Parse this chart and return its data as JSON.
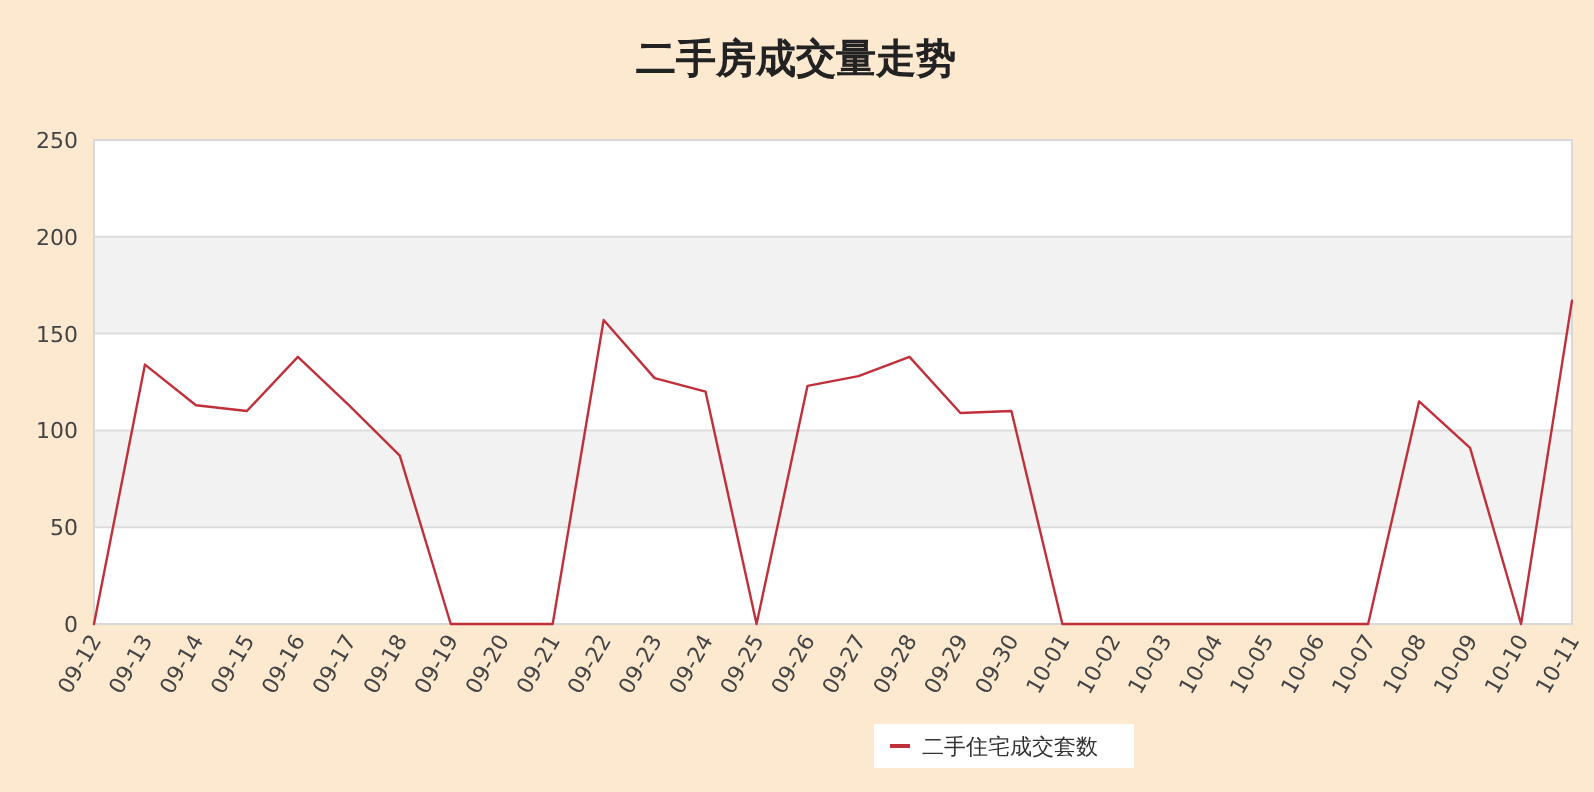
{
  "chart_data": {
    "type": "line",
    "title": "二手房成交量走势",
    "categories": [
      "09-12",
      "09-13",
      "09-14",
      "09-15",
      "09-16",
      "09-17",
      "09-18",
      "09-19",
      "09-20",
      "09-21",
      "09-22",
      "09-23",
      "09-24",
      "09-25",
      "09-26",
      "09-27",
      "09-28",
      "09-29",
      "09-30",
      "10-01",
      "10-02",
      "10-03",
      "10-04",
      "10-05",
      "10-06",
      "10-07",
      "10-08",
      "10-09",
      "10-10",
      "10-11"
    ],
    "series": [
      {
        "name": "二手住宅成交套数",
        "color": "#c0303a",
        "values": [
          0,
          134,
          113,
          110,
          138,
          113,
          87,
          0,
          0,
          0,
          157,
          127,
          120,
          0,
          123,
          128,
          138,
          109,
          110,
          0,
          0,
          0,
          0,
          0,
          0,
          0,
          115,
          91,
          0,
          167
        ]
      }
    ],
    "ylim": [
      0,
      250
    ],
    "yticks": [
      0,
      50,
      100,
      150,
      200,
      250
    ],
    "bands": [
      {
        "axis": "y",
        "from": 50,
        "to": 100,
        "color": "#f2f2f2"
      },
      {
        "axis": "y",
        "from": 150,
        "to": 200,
        "color": "#f2f2f2"
      }
    ],
    "grid": "y",
    "legend": "bottom right",
    "marker": "none",
    "line_style": "solid"
  }
}
